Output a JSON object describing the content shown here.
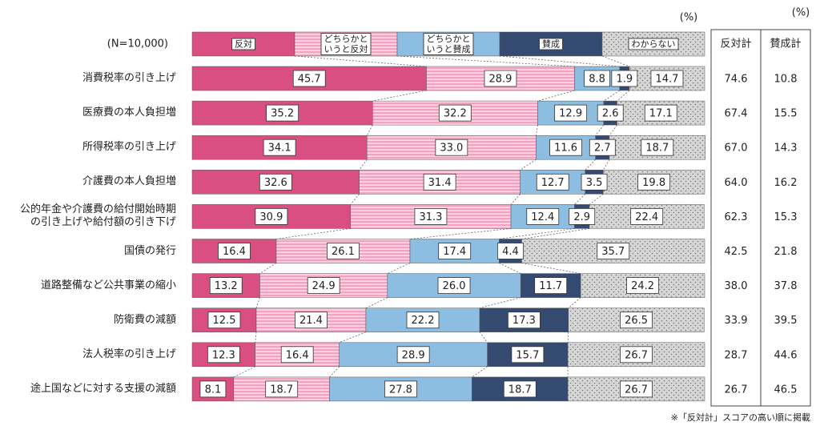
{
  "chart_data": {
    "type": "stacked-bar-100",
    "sample_label": "(N=10,000)",
    "unit": "(%)",
    "categories": [
      "消費税率の引き上げ",
      "医療費の本人負担増",
      "所得税率の引き上げ",
      "介護費の本人負担増",
      "公的年金や介護費の給付開始時期\nの引き上げや給付額の引き下げ",
      "国債の発行",
      "道路整備など公共事業の縮小",
      "防衛費の減額",
      "法人税率の引き上げ",
      "途上国などに対する支援の減額"
    ],
    "xlim": [
      0,
      100
    ],
    "series": [
      {
        "name": "反対",
        "color": "#d94f82",
        "pattern": "solid",
        "values": [
          45.7,
          35.2,
          34.1,
          32.6,
          30.9,
          16.4,
          13.2,
          12.5,
          12.3,
          8.1
        ],
        "value_labels": [
          "45.7",
          "35.2",
          "34.1",
          "32.6",
          "30.9",
          "16.4",
          "13.2",
          "12.5",
          "12.3",
          "8.1"
        ]
      },
      {
        "name": "どちらかと\nいうと反対",
        "color": "#f3a3c2",
        "pattern": "stripes",
        "values": [
          28.9,
          32.2,
          33.0,
          31.4,
          31.3,
          26.1,
          24.9,
          21.4,
          16.4,
          18.7
        ],
        "value_labels": [
          "28.9",
          "32.2",
          "33.0",
          "31.4",
          "31.3",
          "26.1",
          "24.9",
          "21.4",
          "16.4",
          "18.7"
        ]
      },
      {
        "name": "どちらかと\nいうと賛成",
        "color": "#8dbde0",
        "pattern": "solid",
        "values": [
          8.8,
          12.9,
          11.6,
          12.7,
          12.4,
          17.4,
          26.0,
          22.2,
          28.9,
          27.8
        ],
        "value_labels": [
          "8.8",
          "12.9",
          "11.6",
          "12.7",
          "12.4",
          "17.4",
          "26.0",
          "22.2",
          "28.9",
          "27.8"
        ]
      },
      {
        "name": "賛成",
        "color": "#344a70",
        "pattern": "solid",
        "values": [
          1.9,
          2.6,
          2.7,
          3.5,
          2.9,
          4.4,
          11.7,
          17.3,
          15.7,
          18.7
        ],
        "value_labels": [
          "1.9",
          "2.6",
          "2.7",
          "3.5",
          "2.9",
          "4.4",
          "11.7",
          "17.3",
          "15.7",
          "18.7"
        ]
      },
      {
        "name": "わからない",
        "color": "#d6d6d6",
        "pattern": "dots",
        "values": [
          14.7,
          17.1,
          18.7,
          19.8,
          22.4,
          35.7,
          24.2,
          26.5,
          26.7,
          26.7
        ],
        "value_labels": [
          "14.7",
          "17.1",
          "18.7",
          "19.8",
          "22.4",
          "35.7",
          "24.2",
          "26.5",
          "26.7",
          "26.7"
        ]
      }
    ],
    "table": {
      "unit": "(%)",
      "columns": [
        "反対計",
        "賛成計"
      ],
      "rows": [
        [
          "74.6",
          "10.8"
        ],
        [
          "67.4",
          "15.5"
        ],
        [
          "67.0",
          "14.3"
        ],
        [
          "64.0",
          "16.2"
        ],
        [
          "62.3",
          "15.3"
        ],
        [
          "42.5",
          "21.8"
        ],
        [
          "38.0",
          "37.8"
        ],
        [
          "33.9",
          "39.5"
        ],
        [
          "28.7",
          "44.6"
        ],
        [
          "26.7",
          "46.5"
        ]
      ]
    },
    "footnote": "※「反対計」スコアの高い順に掲載"
  }
}
